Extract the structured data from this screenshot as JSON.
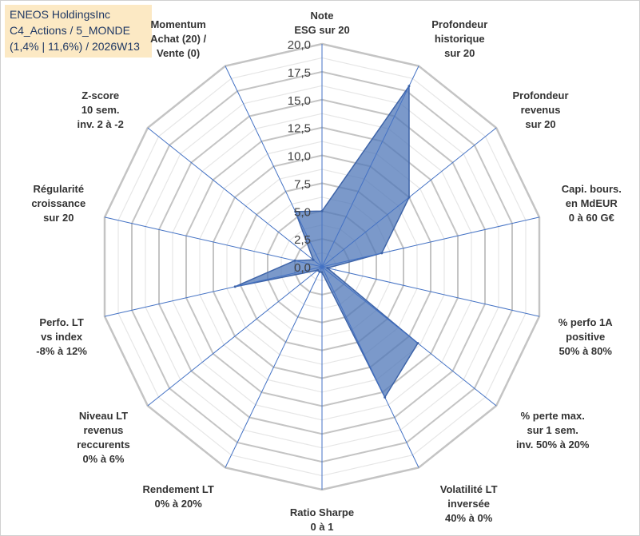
{
  "header": {
    "line1": "ENEOS HoldingsInc",
    "line2": "C4_Actions / 5_MONDE",
    "line3": "(1,4% | 11,6%) / 2026W13"
  },
  "colors": {
    "grid": "#c8c8c8",
    "spoke": "#4472c4",
    "fill": "#4f77b8",
    "header_bg": "#fce9c4",
    "header_text": "#1f3864"
  },
  "chart_data": {
    "type": "radar",
    "rmin": 0,
    "rmax": 20,
    "ticks": [
      "0,0",
      "2,5",
      "5,0",
      "7,5",
      "10,0",
      "12,5",
      "15,0",
      "17,5",
      "20,0"
    ],
    "axes": [
      {
        "label": [
          "Note",
          "ESG sur 20"
        ],
        "value": 5.0
      },
      {
        "label": [
          "Profondeur",
          "historique",
          "sur 20"
        ],
        "value": 18.0
      },
      {
        "label": [
          "Profondeur",
          "revenus",
          "sur 20"
        ],
        "value": 10.0
      },
      {
        "label": [
          "Capi. bours.",
          "en MdEUR",
          "0 à 60 G€"
        ],
        "value": 5.5
      },
      {
        "label": [
          "% perfo 1A",
          "positive",
          "50% à 80%"
        ],
        "value": 0.5
      },
      {
        "label": [
          "% perte max.",
          "sur 1 sem.",
          "inv. 50% à 20%"
        ],
        "value": 11.0
      },
      {
        "label": [
          "Volatilité LT",
          "inversée",
          "40% à 0%"
        ],
        "value": 13.0
      },
      {
        "label": [
          "Ratio Sharpe",
          "0 à 1"
        ],
        "value": 0.5
      },
      {
        "label": [
          "Rendement LT",
          "0% à 20%"
        ],
        "value": 0.5
      },
      {
        "label": [
          "Niveau LT",
          "revenus",
          "reccurents",
          "0% à 6%"
        ],
        "value": 0.5
      },
      {
        "label": [
          "Perfo. LT",
          "vs index",
          "-8% à 12%"
        ],
        "value": 8.0
      },
      {
        "label": [
          "Régularité",
          "croissance",
          "sur 20"
        ],
        "value": 2.5
      },
      {
        "label": [
          "Z-score",
          "10 sem.",
          "inv. 2 à -2"
        ],
        "value": 1.0
      },
      {
        "label": [
          "Momentum",
          "Achat (20) /",
          "Vente (0)"
        ],
        "value": 5.5
      }
    ]
  }
}
